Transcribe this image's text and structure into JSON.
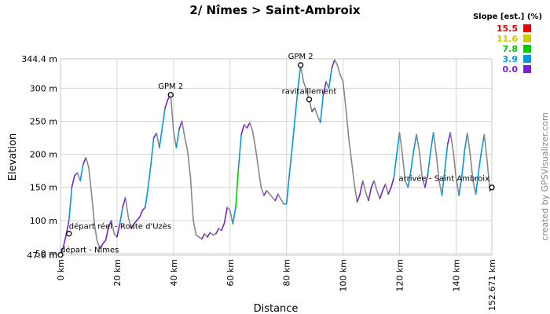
{
  "chart_data": {
    "type": "line",
    "title": "2/ Nîmes > Saint-Ambroix",
    "xlabel": "Distance",
    "ylabel": "Elevation",
    "x_unit": "km",
    "y_unit": "m",
    "xlim": [
      0,
      152.671
    ],
    "ylim": [
      47.6,
      344.4
    ],
    "x_ticks": [
      {
        "value": 0,
        "label": "0 km"
      },
      {
        "value": 20,
        "label": "20 km"
      },
      {
        "value": 40,
        "label": "40 km"
      },
      {
        "value": 60,
        "label": "60 km"
      },
      {
        "value": 80,
        "label": "80 km"
      },
      {
        "value": 100,
        "label": "100 km"
      },
      {
        "value": 120,
        "label": "120 km"
      },
      {
        "value": 140,
        "label": "140 km"
      },
      {
        "value": 152.671,
        "label": "152.671 km"
      }
    ],
    "y_ticks": [
      {
        "value": 47.6,
        "label": "47.6 m"
      },
      {
        "value": 50,
        "label": "50 m"
      },
      {
        "value": 100,
        "label": "100 m"
      },
      {
        "value": 150,
        "label": "150 m"
      },
      {
        "value": 200,
        "label": "200 m"
      },
      {
        "value": 250,
        "label": "250 m"
      },
      {
        "value": 300,
        "label": "300 m"
      },
      {
        "value": 344.4,
        "label": "344.4 m"
      }
    ],
    "grid": true,
    "legend": {
      "title": "Slope [est.] (%)",
      "placement": "top-right",
      "entries": [
        {
          "label": "15.5",
          "color": "#ee0000"
        },
        {
          "label": "11.6",
          "color": "#cccc00"
        },
        {
          "label": "7.8",
          "color": "#00cc00"
        },
        {
          "label": "3.9",
          "color": "#0099dd"
        },
        {
          "label": "0.0",
          "color": "#7722cc"
        }
      ]
    },
    "series": [
      {
        "points": [
          [
            0,
            48
          ],
          [
            1,
            60
          ],
          [
            2,
            78
          ],
          [
            3,
            100
          ],
          [
            4,
            150
          ],
          [
            5,
            168
          ],
          [
            6,
            172
          ],
          [
            7,
            160
          ],
          [
            8,
            185
          ],
          [
            9,
            195
          ],
          [
            10,
            180
          ],
          [
            11,
            140
          ],
          [
            12,
            95
          ],
          [
            13,
            68
          ],
          [
            14,
            58
          ],
          [
            15,
            65
          ],
          [
            16,
            70
          ],
          [
            17,
            90
          ],
          [
            18,
            100
          ],
          [
            19,
            80
          ],
          [
            20,
            75
          ],
          [
            21,
            95
          ],
          [
            22,
            120
          ],
          [
            23,
            135
          ],
          [
            24,
            105
          ],
          [
            25,
            88
          ],
          [
            26,
            95
          ],
          [
            27,
            100
          ],
          [
            28,
            105
          ],
          [
            29,
            115
          ],
          [
            30,
            120
          ],
          [
            31,
            150
          ],
          [
            32,
            185
          ],
          [
            33,
            225
          ],
          [
            34,
            232
          ],
          [
            35,
            210
          ],
          [
            36,
            240
          ],
          [
            37,
            270
          ],
          [
            38,
            283
          ],
          [
            39,
            290
          ],
          [
            40,
            235
          ],
          [
            41,
            210
          ],
          [
            42,
            238
          ],
          [
            43,
            250
          ],
          [
            44,
            225
          ],
          [
            45,
            205
          ],
          [
            46,
            165
          ],
          [
            47,
            100
          ],
          [
            48,
            78
          ],
          [
            49,
            75
          ],
          [
            50,
            72
          ],
          [
            51,
            80
          ],
          [
            52,
            75
          ],
          [
            53,
            82
          ],
          [
            54,
            78
          ],
          [
            55,
            80
          ],
          [
            56,
            88
          ],
          [
            57,
            85
          ],
          [
            58,
            96
          ],
          [
            59,
            120
          ],
          [
            60,
            115
          ],
          [
            61,
            95
          ],
          [
            62,
            120
          ],
          [
            63,
            180
          ],
          [
            64,
            230
          ],
          [
            65,
            245
          ],
          [
            66,
            240
          ],
          [
            67,
            248
          ],
          [
            68,
            235
          ],
          [
            69,
            210
          ],
          [
            70,
            180
          ],
          [
            71,
            150
          ],
          [
            72,
            138
          ],
          [
            73,
            145
          ],
          [
            74,
            140
          ],
          [
            75,
            135
          ],
          [
            76,
            130
          ],
          [
            77,
            140
          ],
          [
            78,
            132
          ],
          [
            79,
            125
          ],
          [
            80,
            125
          ],
          [
            81,
            170
          ],
          [
            82,
            210
          ],
          [
            83,
            255
          ],
          [
            84,
            298
          ],
          [
            85,
            335
          ],
          [
            86,
            310
          ],
          [
            87,
            298
          ],
          [
            88,
            283
          ],
          [
            89,
            265
          ],
          [
            90,
            270
          ],
          [
            91,
            258
          ],
          [
            92,
            248
          ],
          [
            93,
            290
          ],
          [
            94,
            310
          ],
          [
            95,
            300
          ],
          [
            96,
            330
          ],
          [
            97,
            343
          ],
          [
            98,
            335
          ],
          [
            99,
            320
          ],
          [
            100,
            310
          ],
          [
            101,
            270
          ],
          [
            102,
            225
          ],
          [
            103,
            190
          ],
          [
            104,
            155
          ],
          [
            105,
            128
          ],
          [
            106,
            140
          ],
          [
            107,
            160
          ],
          [
            108,
            143
          ],
          [
            109,
            130
          ],
          [
            110,
            150
          ],
          [
            111,
            160
          ],
          [
            112,
            145
          ],
          [
            113,
            133
          ],
          [
            114,
            145
          ],
          [
            115,
            155
          ],
          [
            116,
            140
          ],
          [
            117,
            150
          ],
          [
            118,
            165
          ],
          [
            119,
            200
          ],
          [
            120,
            233
          ],
          [
            121,
            200
          ],
          [
            122,
            160
          ],
          [
            123,
            150
          ],
          [
            124,
            175
          ],
          [
            125,
            205
          ],
          [
            126,
            230
          ],
          [
            127,
            205
          ],
          [
            128,
            165
          ],
          [
            129,
            150
          ],
          [
            130,
            170
          ],
          [
            131,
            205
          ],
          [
            132,
            233
          ],
          [
            133,
            200
          ],
          [
            134,
            160
          ],
          [
            135,
            138
          ],
          [
            136,
            175
          ],
          [
            137,
            215
          ],
          [
            138,
            233
          ],
          [
            139,
            205
          ],
          [
            140,
            165
          ],
          [
            141,
            138
          ],
          [
            142,
            165
          ],
          [
            143,
            205
          ],
          [
            144,
            232
          ],
          [
            145,
            200
          ],
          [
            146,
            160
          ],
          [
            147,
            140
          ],
          [
            148,
            175
          ],
          [
            149,
            205
          ],
          [
            150,
            230
          ],
          [
            151,
            190
          ],
          [
            152,
            145
          ],
          [
            152.671,
            150
          ]
        ]
      }
    ],
    "annotations": [
      {
        "label": "départ - Nîmes",
        "x": 0,
        "y": 48
      },
      {
        "label": "départ réel - Route d'Uzès",
        "x": 3,
        "y": 80
      },
      {
        "label": "GPM 2",
        "x": 39,
        "y": 290
      },
      {
        "label": "GPM 2",
        "x": 85,
        "y": 335
      },
      {
        "label": "ravitaillement",
        "x": 88,
        "y": 283
      },
      {
        "label": "arrivée - Saint Ambroix",
        "x": 152.671,
        "y": 150
      }
    ],
    "credit": "created by GPSVisualizer.com"
  }
}
